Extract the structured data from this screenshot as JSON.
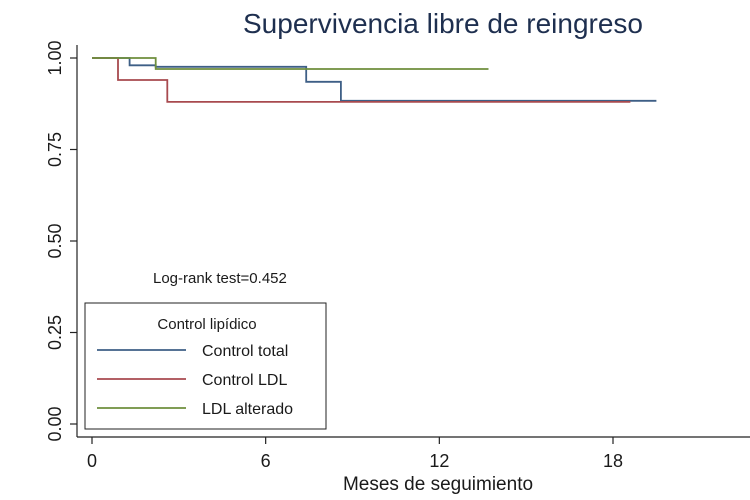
{
  "chart_data": {
    "type": "line",
    "title": "Supervivencia libre de reingreso",
    "xlabel": "Meses de seguimiento",
    "ylabel": "",
    "xlim": [
      0,
      24
    ],
    "ylim": [
      0,
      1
    ],
    "x_ticks": [
      "0",
      "6",
      "12",
      "18"
    ],
    "y_ticks": [
      "0.00",
      "0.25",
      "0.50",
      "0.75",
      "1.00"
    ],
    "grid": false,
    "annotation": "Log-rank test=0.452",
    "legend": {
      "title": "Control lipídico",
      "position": "bottom-left"
    },
    "series": [
      {
        "name": "Control total",
        "color": "#3e5f86",
        "step": true,
        "points": [
          [
            0,
            1.0
          ],
          [
            1.3,
            1.0
          ],
          [
            1.3,
            0.98
          ],
          [
            2.2,
            0.98
          ],
          [
            2.2,
            0.976
          ],
          [
            7.4,
            0.976
          ],
          [
            7.4,
            0.935
          ],
          [
            8.6,
            0.935
          ],
          [
            8.6,
            0.883
          ],
          [
            19.5,
            0.883
          ]
        ]
      },
      {
        "name": "Control LDL",
        "color": "#a84a4f",
        "step": true,
        "points": [
          [
            0,
            1.0
          ],
          [
            0.9,
            1.0
          ],
          [
            0.9,
            0.94
          ],
          [
            2.6,
            0.94
          ],
          [
            2.6,
            0.88
          ],
          [
            18.6,
            0.88
          ]
        ]
      },
      {
        "name": "LDL alterado",
        "color": "#6e8f3d",
        "step": true,
        "points": [
          [
            0,
            1.0
          ],
          [
            2.2,
            1.0
          ],
          [
            2.2,
            0.97
          ],
          [
            13.7,
            0.97
          ]
        ]
      }
    ]
  }
}
